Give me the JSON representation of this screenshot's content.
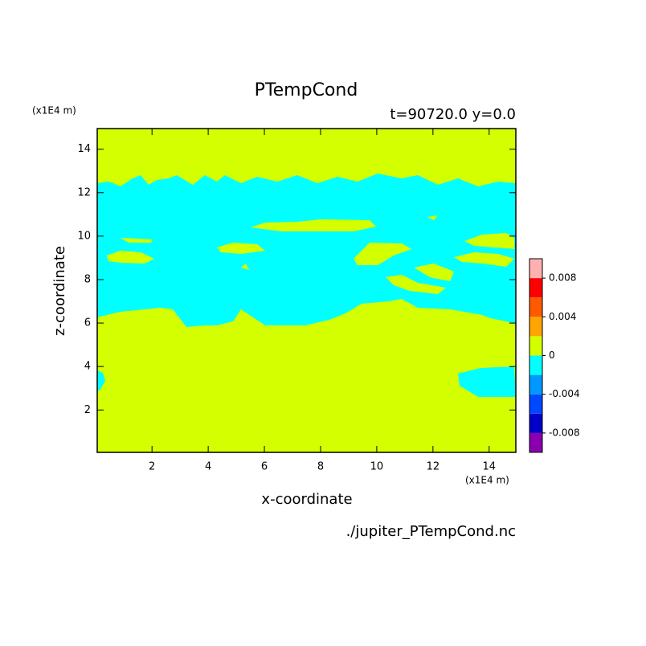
{
  "chart_data": {
    "type": "contour",
    "title": "PTempCond",
    "subtitle": "t=90720.0 y=0.0",
    "x_label": "x-coordinate",
    "y_label": "z-coordinate",
    "x_unit": "(x1E4 m)",
    "y_unit": "(x1E4 m)",
    "source": "./jupiter_PTempCond.nc",
    "xlim": [
      0.05,
      14.95
    ],
    "ylim": [
      0.05,
      14.95
    ],
    "xticks": [
      2,
      4,
      6,
      8,
      10,
      12,
      14
    ],
    "yticks": [
      2,
      4,
      6,
      8,
      10,
      12,
      14
    ],
    "levels": [
      -0.01,
      -0.008,
      -0.006,
      -0.004,
      -0.002,
      0,
      0.002,
      0.004,
      0.006,
      0.008,
      0.01
    ],
    "level_colors": [
      "#8a00b0",
      "#0000c8",
      "#0048ff",
      "#0099ff",
      "#00ffff",
      "#d4ff00",
      "#ffa500",
      "#ff5a00",
      "#ff0000",
      "#ffb0b0"
    ],
    "colorbar_ticks": [
      -0.008,
      -0.004,
      0,
      0.004,
      0.008
    ]
  }
}
